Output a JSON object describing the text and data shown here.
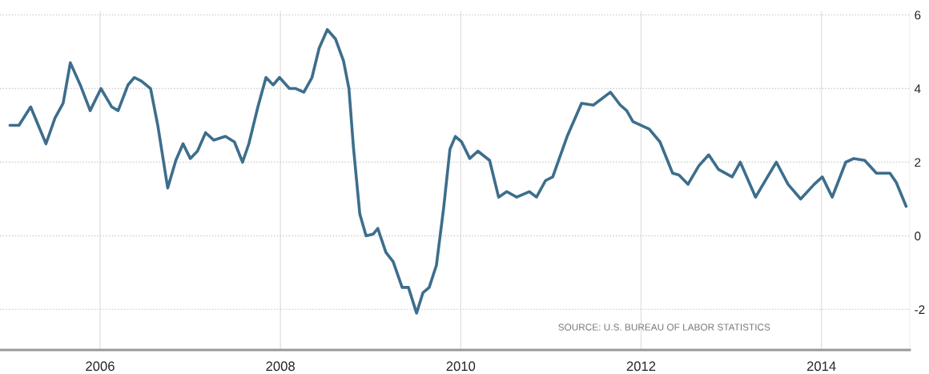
{
  "chart_data": {
    "type": "line",
    "x": [
      2005.0,
      2005.1,
      2005.23,
      2005.4,
      2005.5,
      2005.59,
      2005.67,
      2005.78,
      2005.89,
      2006.01,
      2006.13,
      2006.2,
      2006.31,
      2006.38,
      2006.46,
      2006.56,
      2006.64,
      2006.75,
      2006.84,
      2006.92,
      2007.0,
      2007.08,
      2007.17,
      2007.26,
      2007.39,
      2007.49,
      2007.58,
      2007.65,
      2007.75,
      2007.84,
      2007.92,
      2007.99,
      2008.1,
      2008.17,
      2008.26,
      2008.35,
      2008.43,
      2008.52,
      2008.61,
      2008.7,
      2008.76,
      2008.81,
      2008.88,
      2008.95,
      2009.03,
      2009.08,
      2009.17,
      2009.25,
      2009.35,
      2009.42,
      2009.51,
      2009.58,
      2009.65,
      2009.73,
      2009.81,
      2009.88,
      2009.94,
      2010.01,
      2010.1,
      2010.19,
      2010.32,
      2010.42,
      2010.51,
      2010.62,
      2010.76,
      2010.84,
      2010.94,
      2011.02,
      2011.18,
      2011.34,
      2011.47,
      2011.66,
      2011.77,
      2011.84,
      2011.91,
      2012.09,
      2012.21,
      2012.35,
      2012.42,
      2012.52,
      2012.64,
      2012.75,
      2012.86,
      2013.01,
      2013.1,
      2013.27,
      2013.39,
      2013.5,
      2013.63,
      2013.77,
      2013.92,
      2014.01,
      2014.12,
      2014.27,
      2014.36,
      2014.48,
      2014.61,
      2014.76,
      2014.83,
      2014.94
    ],
    "series": [
      {
        "color": "#3d6e8c",
        "values": [
          3.0,
          3.0,
          3.5,
          2.5,
          3.2,
          3.6,
          4.7,
          4.1,
          3.4,
          4.0,
          3.5,
          3.4,
          4.1,
          4.3,
          4.2,
          4.0,
          3.0,
          1.3,
          2.05,
          2.5,
          2.1,
          2.3,
          2.8,
          2.6,
          2.7,
          2.55,
          2.0,
          2.5,
          3.5,
          4.3,
          4.1,
          4.3,
          4.0,
          4.0,
          3.9,
          4.3,
          5.1,
          5.6,
          5.35,
          4.75,
          4.0,
          2.4,
          0.6,
          0.0,
          0.05,
          0.2,
          -0.45,
          -0.7,
          -1.4,
          -1.4,
          -2.1,
          -1.55,
          -1.4,
          -0.8,
          0.75,
          2.35,
          2.7,
          2.55,
          2.1,
          2.3,
          2.05,
          1.05,
          1.2,
          1.05,
          1.2,
          1.05,
          1.5,
          1.6,
          2.7,
          3.6,
          3.55,
          3.9,
          3.55,
          3.4,
          3.1,
          2.9,
          2.55,
          1.7,
          1.65,
          1.4,
          1.9,
          2.2,
          1.8,
          1.6,
          2.0,
          1.05,
          1.55,
          2.0,
          1.4,
          1.0,
          1.4,
          1.6,
          1.05,
          2.0,
          2.1,
          2.05,
          1.7,
          1.7,
          1.45,
          0.8
        ]
      }
    ],
    "xlim": [
      2004.89,
      2014.98
    ],
    "xticks": [
      2006,
      2008,
      2010,
      2012,
      2014
    ],
    "ylim": [
      -3.1,
      6.1
    ],
    "yticks": [
      -2,
      0,
      2,
      4,
      6
    ],
    "grid": true,
    "marker": "none",
    "line_style": "solid",
    "annotations": [
      "SOURCE: U.S. BUREAU OF LABOR STATISTICS"
    ]
  }
}
